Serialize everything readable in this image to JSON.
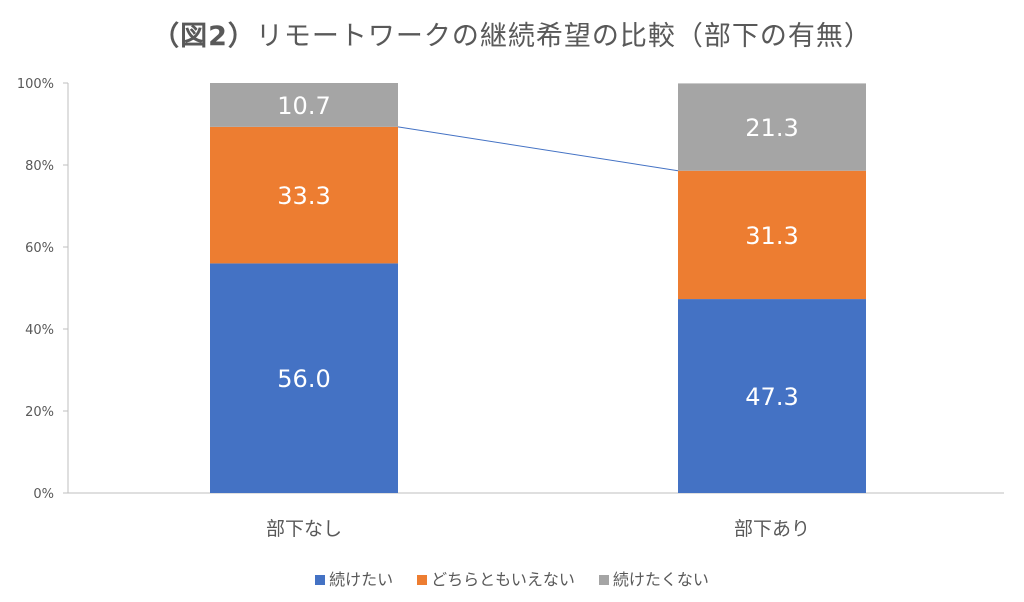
{
  "chart_data": {
    "type": "bar",
    "stacked": true,
    "title_bold": "（図2）",
    "title_rest": "リモートワークの継続希望の比較（部下の有無）",
    "categories": [
      "部下なし",
      "部下あり"
    ],
    "series": [
      {
        "name": "続けたい",
        "color": "#4472C4",
        "values": [
          56.0,
          47.3
        ]
      },
      {
        "name": "どちらともいえない",
        "color": "#ED7D31",
        "values": [
          33.3,
          31.3
        ]
      },
      {
        "name": "続けたくない",
        "color": "#A5A5A5",
        "values": [
          10.7,
          21.3
        ]
      }
    ],
    "data_labels": [
      [
        "56.0",
        "47.3"
      ],
      [
        "33.3",
        "31.3"
      ],
      [
        "10.7",
        "21.3"
      ]
    ],
    "yticks": [
      "0%",
      "20%",
      "40%",
      "60%",
      "80%",
      "100%"
    ],
    "ylim": [
      0,
      100
    ],
    "series_line": true,
    "legend_position": "bottom",
    "grid": false
  }
}
